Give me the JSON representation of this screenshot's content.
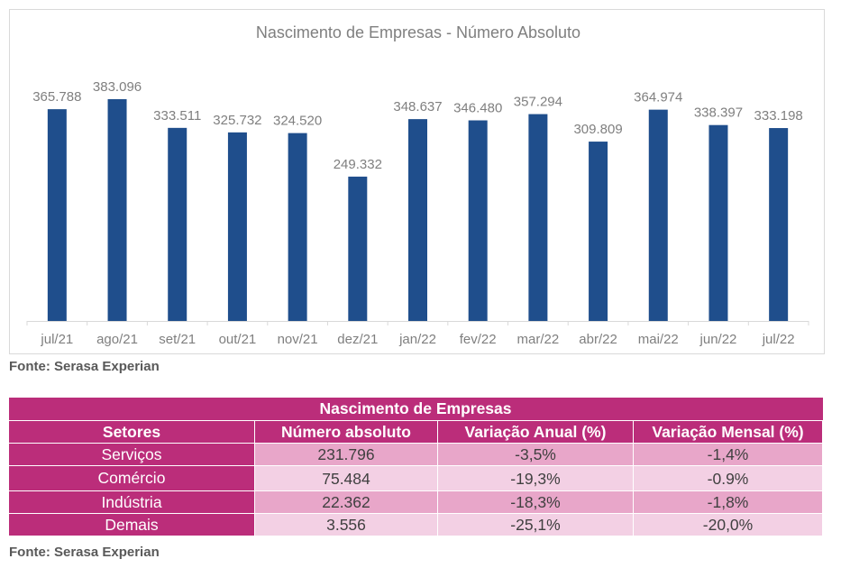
{
  "chart_data": {
    "type": "bar",
    "title": "Nascimento de Empresas - Número Absoluto",
    "xlabel": "",
    "ylabel": "",
    "categories": [
      "jul/21",
      "ago/21",
      "set/21",
      "out/21",
      "nov/21",
      "dez/21",
      "jan/22",
      "fev/22",
      "mar/22",
      "abr/22",
      "mai/22",
      "jun/22",
      "jul/22"
    ],
    "values": [
      365788,
      383096,
      333511,
      325732,
      324520,
      249332,
      348637,
      346480,
      357294,
      309809,
      364974,
      338397,
      333198
    ],
    "data_labels": [
      "365.788",
      "383.096",
      "333.511",
      "325.732",
      "324.520",
      "249.332",
      "348.637",
      "346.480",
      "357.294",
      "309.809",
      "364.974",
      "338.397",
      "333.198"
    ],
    "ylim": [
      0,
      383096
    ],
    "grid": false,
    "legend": "none",
    "bar_color": "#1f4e8c"
  },
  "chart_source": "Fonte: Serasa Experian",
  "table": {
    "title": "Nascimento de Empresas",
    "headers": [
      "Setores",
      "Número absoluto",
      "Variação Anual (%)",
      "Variação Mensal (%)"
    ],
    "rows": [
      [
        "Serviços",
        "231.796",
        "-3,5%",
        "-1,4%"
      ],
      [
        "Comércio",
        "75.484",
        "-19,3%",
        "-0.9%"
      ],
      [
        "Indústria",
        "22.362",
        "-18,3%",
        "-1,8%"
      ],
      [
        "Demais",
        "3.556",
        "-25,1%",
        "-20,0%"
      ]
    ],
    "header_color": "#bb2d7a",
    "row_color_odd": "#e8a6c9",
    "row_color_even": "#f3d0e4"
  },
  "table_source": "Fonte: Serasa Experian"
}
